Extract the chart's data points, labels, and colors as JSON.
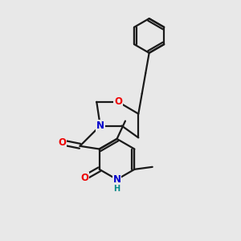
{
  "bg_color": "#e8e8e8",
  "bond_color": "#1a1a1a",
  "bond_width": 1.6,
  "atom_colors": {
    "O": "#ee0000",
    "N": "#0000cc",
    "H": "#008888"
  },
  "font_size": 8.5,
  "fig_size": [
    3.0,
    3.0
  ],
  "dpi": 100,
  "xlim": [
    0,
    10
  ],
  "ylim": [
    0,
    10
  ]
}
